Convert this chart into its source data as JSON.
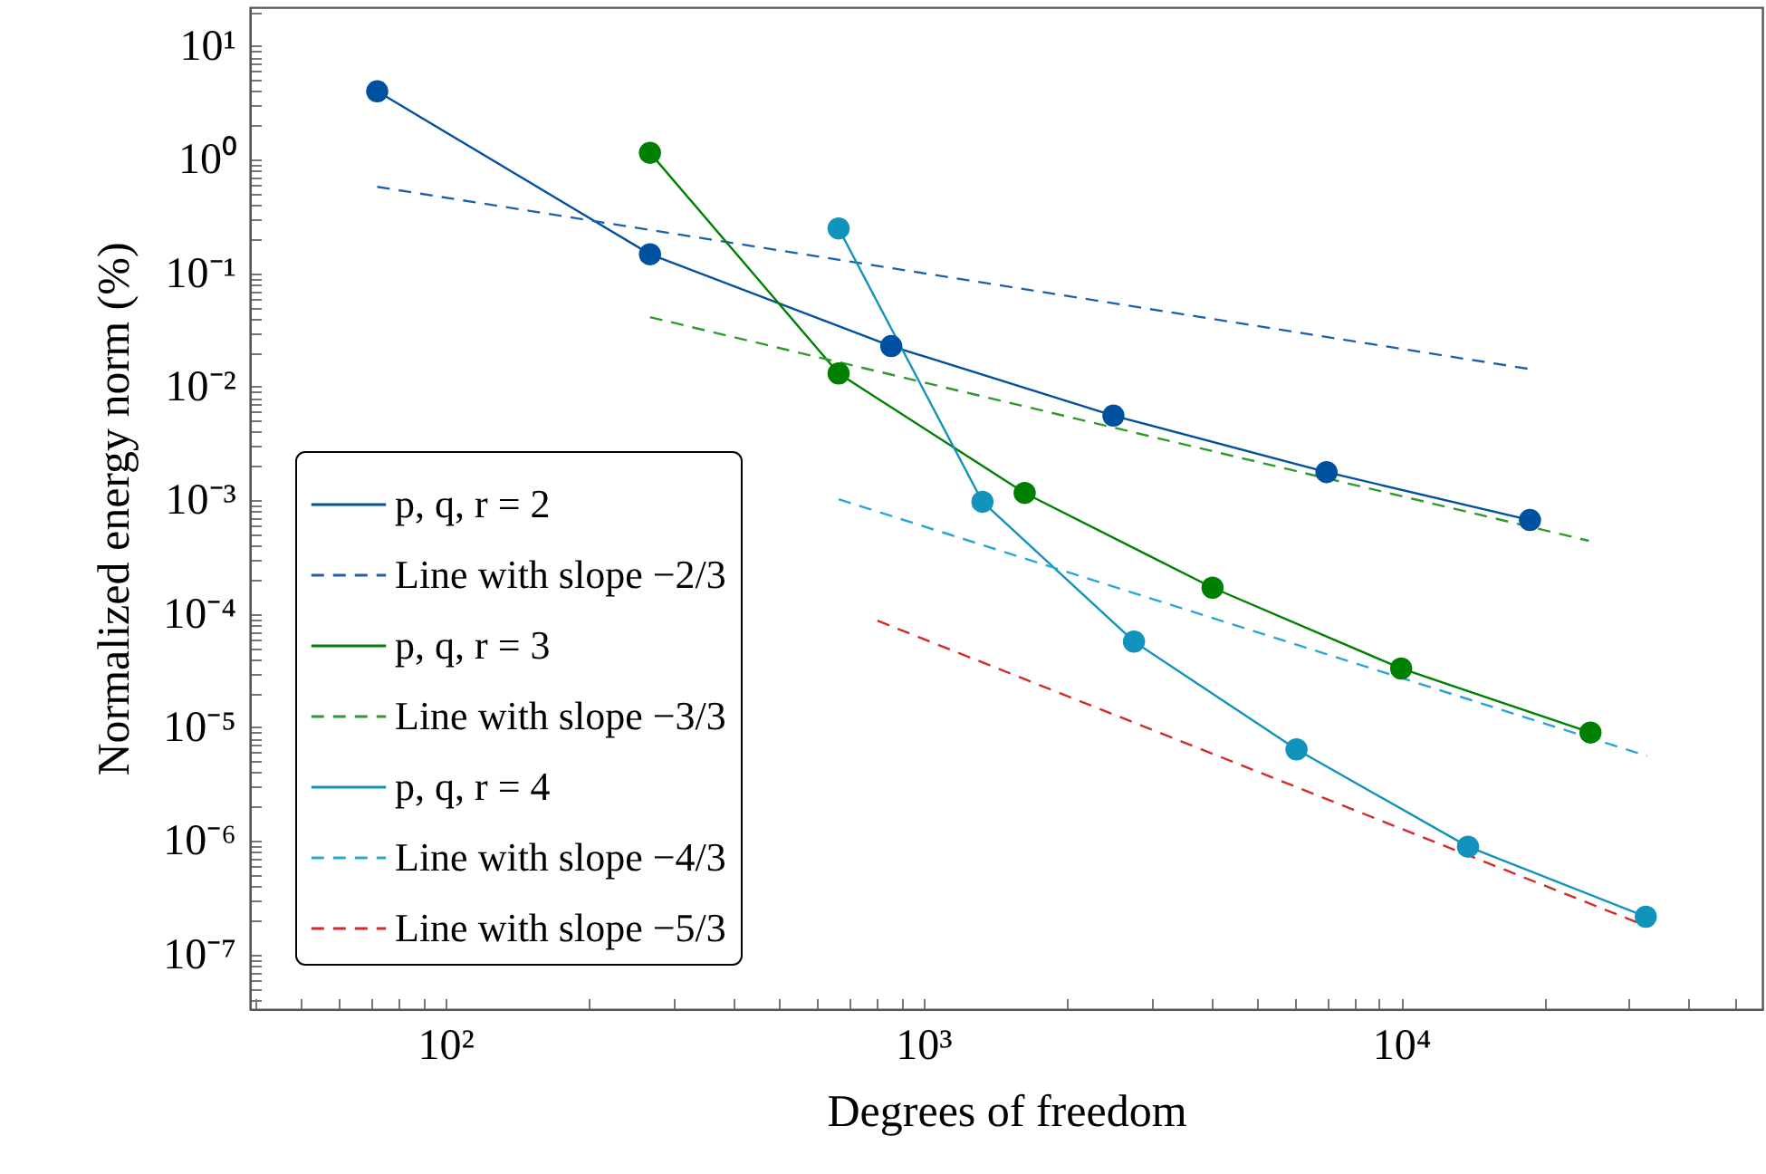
{
  "chart_data": {
    "type": "line",
    "xlabel": "Degrees of freedom",
    "ylabel": "Normalized energy norm (%)",
    "log": "xy",
    "legend": "bottom left",
    "xlim": [
      39,
      57000
    ],
    "ylim": [
      3.3e-08,
      22
    ],
    "xticks": [
      {
        "value": 40,
        "label": null
      },
      {
        "value": 50,
        "label": null
      },
      {
        "value": 60,
        "label": null
      },
      {
        "value": 70,
        "label": null
      },
      {
        "value": 80,
        "label": null
      },
      {
        "value": 90,
        "label": null
      },
      {
        "value": 100,
        "label": "10²"
      },
      {
        "value": 200,
        "label": null
      },
      {
        "value": 300,
        "label": null
      },
      {
        "value": 400,
        "label": null
      },
      {
        "value": 500,
        "label": null
      },
      {
        "value": 600,
        "label": null
      },
      {
        "value": 700,
        "label": null
      },
      {
        "value": 800,
        "label": null
      },
      {
        "value": 900,
        "label": null
      },
      {
        "value": 1000,
        "label": "10³"
      },
      {
        "value": 2000,
        "label": null
      },
      {
        "value": 3000,
        "label": null
      },
      {
        "value": 4000,
        "label": null
      },
      {
        "value": 5000,
        "label": null
      },
      {
        "value": 6000,
        "label": null
      },
      {
        "value": 7000,
        "label": null
      },
      {
        "value": 8000,
        "label": null
      },
      {
        "value": 9000,
        "label": null
      },
      {
        "value": 10000,
        "label": "10⁴"
      },
      {
        "value": 20000,
        "label": null
      },
      {
        "value": 30000,
        "label": null
      },
      {
        "value": 40000,
        "label": null
      },
      {
        "value": 50000,
        "label": null
      }
    ],
    "yticks": [
      {
        "value": 4e-08,
        "label": null
      },
      {
        "value": 5e-08,
        "label": null
      },
      {
        "value": 6e-08,
        "label": null
      },
      {
        "value": 7e-08,
        "label": null
      },
      {
        "value": 8e-08,
        "label": null
      },
      {
        "value": 9e-08,
        "label": null
      },
      {
        "value": 1e-07,
        "label": "10⁻⁷"
      },
      {
        "value": 2e-07,
        "label": null
      },
      {
        "value": 3e-07,
        "label": null
      },
      {
        "value": 4e-07,
        "label": null
      },
      {
        "value": 5e-07,
        "label": null
      },
      {
        "value": 6e-07,
        "label": null
      },
      {
        "value": 7e-07,
        "label": null
      },
      {
        "value": 8e-07,
        "label": null
      },
      {
        "value": 9e-07,
        "label": null
      },
      {
        "value": 1e-06,
        "label": "10⁻⁶"
      },
      {
        "value": 2e-06,
        "label": null
      },
      {
        "value": 3e-06,
        "label": null
      },
      {
        "value": 4e-06,
        "label": null
      },
      {
        "value": 5e-06,
        "label": null
      },
      {
        "value": 6e-06,
        "label": null
      },
      {
        "value": 7e-06,
        "label": null
      },
      {
        "value": 8e-06,
        "label": null
      },
      {
        "value": 9e-06,
        "label": null
      },
      {
        "value": 1e-05,
        "label": "10⁻⁵"
      },
      {
        "value": 2e-05,
        "label": null
      },
      {
        "value": 3e-05,
        "label": null
      },
      {
        "value": 4e-05,
        "label": null
      },
      {
        "value": 5e-05,
        "label": null
      },
      {
        "value": 6e-05,
        "label": null
      },
      {
        "value": 7e-05,
        "label": null
      },
      {
        "value": 8e-05,
        "label": null
      },
      {
        "value": 9e-05,
        "label": null
      },
      {
        "value": 0.0001,
        "label": "10⁻⁴"
      },
      {
        "value": 0.0002,
        "label": null
      },
      {
        "value": 0.0003,
        "label": null
      },
      {
        "value": 0.0004,
        "label": null
      },
      {
        "value": 0.0005,
        "label": null
      },
      {
        "value": 0.0006,
        "label": null
      },
      {
        "value": 0.0007,
        "label": null
      },
      {
        "value": 0.0008,
        "label": null
      },
      {
        "value": 0.0009,
        "label": null
      },
      {
        "value": 0.001,
        "label": "10⁻³"
      },
      {
        "value": 0.002,
        "label": null
      },
      {
        "value": 0.003,
        "label": null
      },
      {
        "value": 0.004,
        "label": null
      },
      {
        "value": 0.005,
        "label": null
      },
      {
        "value": 0.006,
        "label": null
      },
      {
        "value": 0.007,
        "label": null
      },
      {
        "value": 0.008,
        "label": null
      },
      {
        "value": 0.009,
        "label": null
      },
      {
        "value": 0.01,
        "label": "10⁻²"
      },
      {
        "value": 0.02,
        "label": null
      },
      {
        "value": 0.03,
        "label": null
      },
      {
        "value": 0.04,
        "label": null
      },
      {
        "value": 0.05,
        "label": null
      },
      {
        "value": 0.06,
        "label": null
      },
      {
        "value": 0.07,
        "label": null
      },
      {
        "value": 0.08,
        "label": null
      },
      {
        "value": 0.09,
        "label": null
      },
      {
        "value": 0.1,
        "label": "10⁻¹"
      },
      {
        "value": 0.2,
        "label": null
      },
      {
        "value": 0.3,
        "label": null
      },
      {
        "value": 0.4,
        "label": null
      },
      {
        "value": 0.5,
        "label": null
      },
      {
        "value": 0.6,
        "label": null
      },
      {
        "value": 0.7,
        "label": null
      },
      {
        "value": 0.8,
        "label": null
      },
      {
        "value": 0.9,
        "label": null
      },
      {
        "value": 1,
        "label": "10⁰"
      },
      {
        "value": 2,
        "label": null
      },
      {
        "value": 3,
        "label": null
      },
      {
        "value": 4,
        "label": null
      },
      {
        "value": 5,
        "label": null
      },
      {
        "value": 6,
        "label": null
      },
      {
        "value": 7,
        "label": null
      },
      {
        "value": 8,
        "label": null
      },
      {
        "value": 9,
        "label": null
      },
      {
        "value": 10,
        "label": "10¹"
      },
      {
        "value": 20,
        "label": null
      }
    ],
    "series": [
      {
        "name": "p, q, r = 2",
        "color": "#0050a0",
        "marker": "circle",
        "line_style": "solid",
        "x": [
          72,
          268,
          857,
          2500,
          6980,
          18600
        ],
        "values": [
          4.0,
          0.147,
          0.0228,
          0.00557,
          0.00177,
          0.00067
        ]
      },
      {
        "name": "Line with slope −2/3",
        "color": "#1c5fae",
        "marker": "none",
        "line_style": "dashed",
        "x": [
          72,
          18600
        ],
        "values": [
          0.577,
          0.0143
        ]
      },
      {
        "name": "p, q, r = 3",
        "color": "#008000",
        "marker": "circle",
        "line_style": "solid",
        "x": [
          268,
          665,
          1630,
          4030,
          10000,
          24900
        ],
        "values": [
          1.15,
          0.0131,
          0.00116,
          0.00017,
          3.3e-05,
          9e-06
        ]
      },
      {
        "name": "Line with slope −3/3",
        "color": "#2e9a2e",
        "marker": "none",
        "line_style": "dashed",
        "x": [
          268,
          24700
        ],
        "values": [
          0.041,
          0.00044
        ]
      },
      {
        "name": "p, q, r = 4",
        "color": "#1193bb",
        "marker": "circle",
        "line_style": "solid",
        "x": [
          665,
          1330,
          2760,
          6040,
          13800,
          32500
        ],
        "values": [
          0.248,
          0.00097,
          5.7e-05,
          6.4e-06,
          8.9e-07,
          2.15e-07
        ]
      },
      {
        "name": "Line with slope −4/3",
        "color": "#2aa5d6",
        "marker": "none",
        "line_style": "dashed",
        "x": [
          665,
          32700
        ],
        "values": [
          0.00102,
          5.6e-06
        ]
      },
      {
        "name": "Line with slope −5/3",
        "color": "#d42a2a",
        "marker": "none",
        "line_style": "dashed",
        "x": [
          802,
          32700
        ],
        "values": [
          8.7e-05,
          1.77e-07
        ]
      }
    ]
  }
}
